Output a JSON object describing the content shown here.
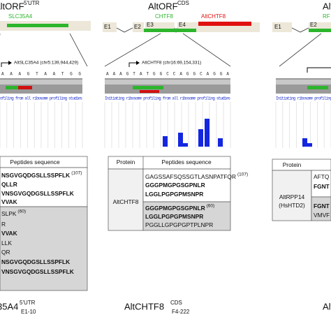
{
  "panels": [
    {
      "title": "AltORF",
      "title_sup": "5'UTR",
      "genes": [
        {
          "label": "SLC35A4",
          "color": "#2db52d"
        }
      ],
      "exons": [],
      "locus": "AltSLC35A4 (chr5:139,944,429)",
      "sequence": "AAAGTAATGG",
      "table": {
        "header": [
          "Peptides sequence"
        ],
        "groups": [
          {
            "rows": [
              {
                "text": "NSGVGQDGSLLSSPFLK",
                "sup": "(107)",
                "bold": true
              },
              {
                "text": "QLLR",
                "bold": true
              },
              {
                "text": "VNSGVGQDGSLLSSPFLK",
                "bold": true
              },
              {
                "text": "VVAK",
                "bold": true
              }
            ]
          },
          {
            "rows": [
              {
                "text": "SLPK",
                "sup": "(60)",
                "bold": false
              },
              {
                "text": "R",
                "bold": false
              },
              {
                "text": "VVAK",
                "bold": true
              },
              {
                "text": "LLK",
                "bold": false
              },
              {
                "text": "QR",
                "bold": false
              },
              {
                "text": "NSGVGQDGSLLSSPFLK",
                "bold": true
              },
              {
                "text": "VNSGVGQDGSLLSSPFLK",
                "bold": true
              }
            ]
          }
        ]
      },
      "caption": "35A4",
      "caption_sup": "5'UTR",
      "caption_sub": "E1-10",
      "bars": []
    },
    {
      "title": "AltORF",
      "title_sup": "CDS",
      "genes": [
        {
          "label": "CHTF8",
          "color": "#2db52d"
        },
        {
          "label": "AltCHTF8",
          "color": "#e01010"
        }
      ],
      "exons": [
        "E1",
        "E2",
        "E3",
        "E4"
      ],
      "locus": "AltCHTF8 (chr16:69,154,331)",
      "sequence": "AAAGTATGGCCAGGCAGGA",
      "table": {
        "header": [
          "Protein",
          "Peptides sequence"
        ],
        "protein": [
          "AltCHTF8"
        ],
        "groups": [
          {
            "rows": [
              {
                "text": "GAGSSAFSQSSGTLASNPATFQR",
                "sup": "(107)",
                "bold": false
              },
              {
                "text": "GGGPMGPGSGPNLR",
                "bold": true
              },
              {
                "text": "LGGLPGPGPMSNPR",
                "bold": true
              }
            ]
          },
          {
            "rows": [
              {
                "text": "GGGPMGPGSGPNLR",
                "sup": "(60)",
                "bold": true
              },
              {
                "text": "LGGLPGPGPMSNPR",
                "bold": true
              },
              {
                "text": "PGGLLGPGPGPTPLNPR",
                "bold": false
              }
            ]
          }
        ]
      },
      "caption": "AltCHTF8",
      "caption_sup": "CDS",
      "caption_sub": "F4-222",
      "bars": [
        15,
        20,
        5,
        25,
        40,
        12
      ]
    },
    {
      "title": "Alt",
      "genes": [
        {
          "label": "RF",
          "color": "#2db52d"
        }
      ],
      "exons": [
        "E1",
        "E2"
      ],
      "table": {
        "header": [
          "Protein"
        ],
        "protein": [
          "AltRPP14",
          "(HsHTD2)"
        ],
        "groups": [
          {
            "rows": [
              {
                "text": "AFTQ",
                "bold": false
              },
              {
                "text": "FGNT",
                "bold": true
              }
            ]
          },
          {
            "rows": [
              {
                "text": "FGNT",
                "bold": true
              },
              {
                "text": "VMVF",
                "bold": false
              }
            ]
          }
        ]
      },
      "bars": [
        12,
        5
      ]
    }
  ],
  "blue_text": "Initiating ribosome profiling from all ribosome profiling studies"
}
